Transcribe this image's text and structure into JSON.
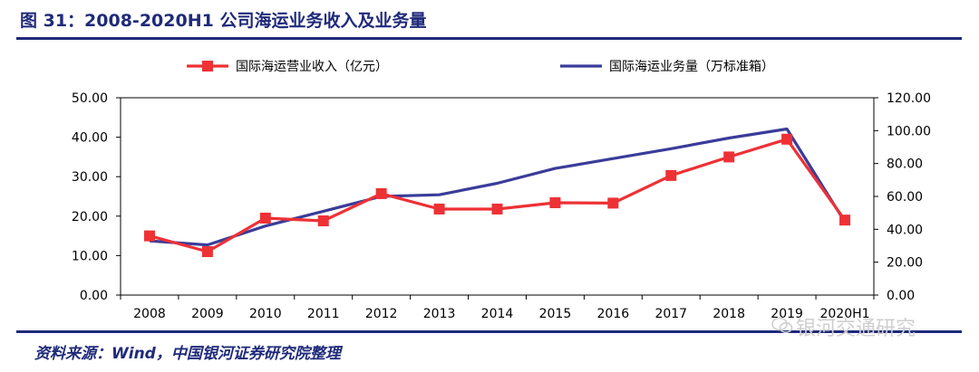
{
  "header": {
    "title": "图 31：2008-2020H1 公司海运业务收入及业务量"
  },
  "footer": {
    "source": "资料来源：Wind，中国银河证券研究院整理",
    "watermark": "银河交通研究"
  },
  "colors": {
    "title": "#1f2a7a",
    "revenue": "#ee3135",
    "volume": "#3a3c9a"
  },
  "chart_data": {
    "type": "line",
    "categories": [
      "2008",
      "2009",
      "2010",
      "2011",
      "2012",
      "2013",
      "2014",
      "2015",
      "2016",
      "2017",
      "2018",
      "2019",
      "2020H1"
    ],
    "y_left": {
      "ylim": [
        0,
        50
      ],
      "ticks": [
        "0.00",
        "10.00",
        "20.00",
        "30.00",
        "40.00",
        "50.00"
      ]
    },
    "y_right": {
      "ylim": [
        0,
        120
      ],
      "ticks": [
        "0.00",
        "20.00",
        "40.00",
        "60.00",
        "80.00",
        "100.00",
        "120.00"
      ]
    },
    "legend_position": "top",
    "grid": false,
    "series": [
      {
        "name": "国际海运营业收入（亿元）",
        "axis": "left",
        "marker": "square",
        "values": [
          15.0,
          11.0,
          19.5,
          18.8,
          25.7,
          21.8,
          21.8,
          23.4,
          23.3,
          30.3,
          35.0,
          39.5,
          19.0
        ]
      },
      {
        "name": "国际海运业务量（万标准箱）",
        "axis": "right",
        "marker": "none",
        "values": [
          33.0,
          30.5,
          42.0,
          51.0,
          60.0,
          61.0,
          68.0,
          77.0,
          83.0,
          89.0,
          95.5,
          101.0,
          44.5
        ]
      }
    ]
  }
}
